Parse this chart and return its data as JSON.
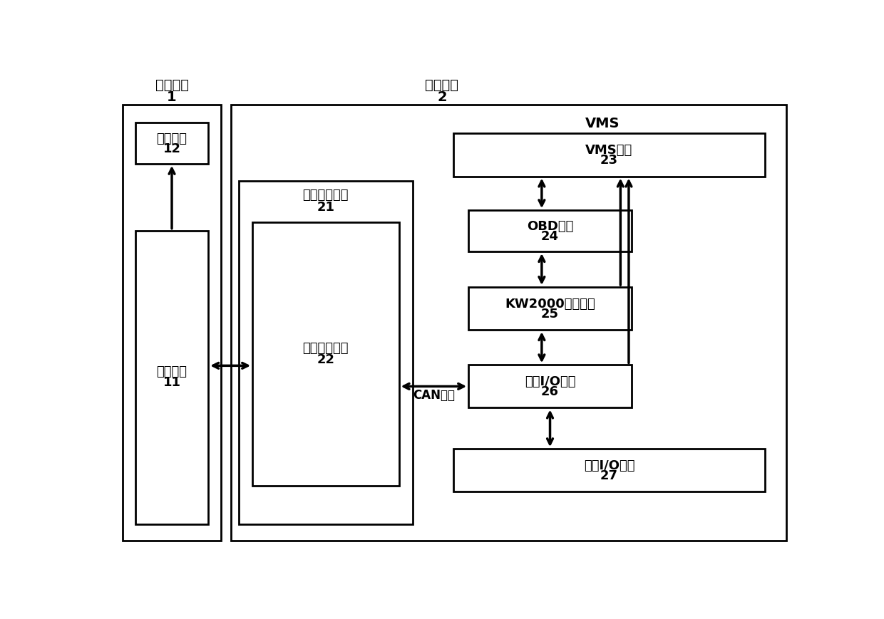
{
  "bg_color": "#ffffff",
  "title_mobile": "移动终端",
  "label_mobile_num": "1",
  "title_vehicle": "车载系统",
  "label_vehicle_num": "2",
  "label_vms": "VMS",
  "box_diag_label": "诊断软件",
  "box_diag_num": "12",
  "box_bt_label": "蓝牙装置",
  "box_bt_num": "11",
  "box_car_bt_outer_label": "车载蓝牙设备",
  "box_car_bt_outer_num": "21",
  "box_car_bt_inner_label": "蓝牙转换装置",
  "box_car_bt_inner_num": "22",
  "box_vms_sw_label": "VMS软件",
  "box_vms_sw_num": "23",
  "box_obd_label": "OBD系统",
  "box_obd_num": "24",
  "box_kw_label": "KW2000协议接口",
  "box_kw_num": "25",
  "box_io_label": "底层I/O接口",
  "box_io_num": "26",
  "box_ext_io_label": "外部I/O接口",
  "box_ext_io_num": "27",
  "can_label": "CAN总线",
  "font_size_label": 13,
  "font_size_num": 13,
  "font_size_title": 14,
  "line_color": "#000000",
  "box_fill": "#ffffff"
}
